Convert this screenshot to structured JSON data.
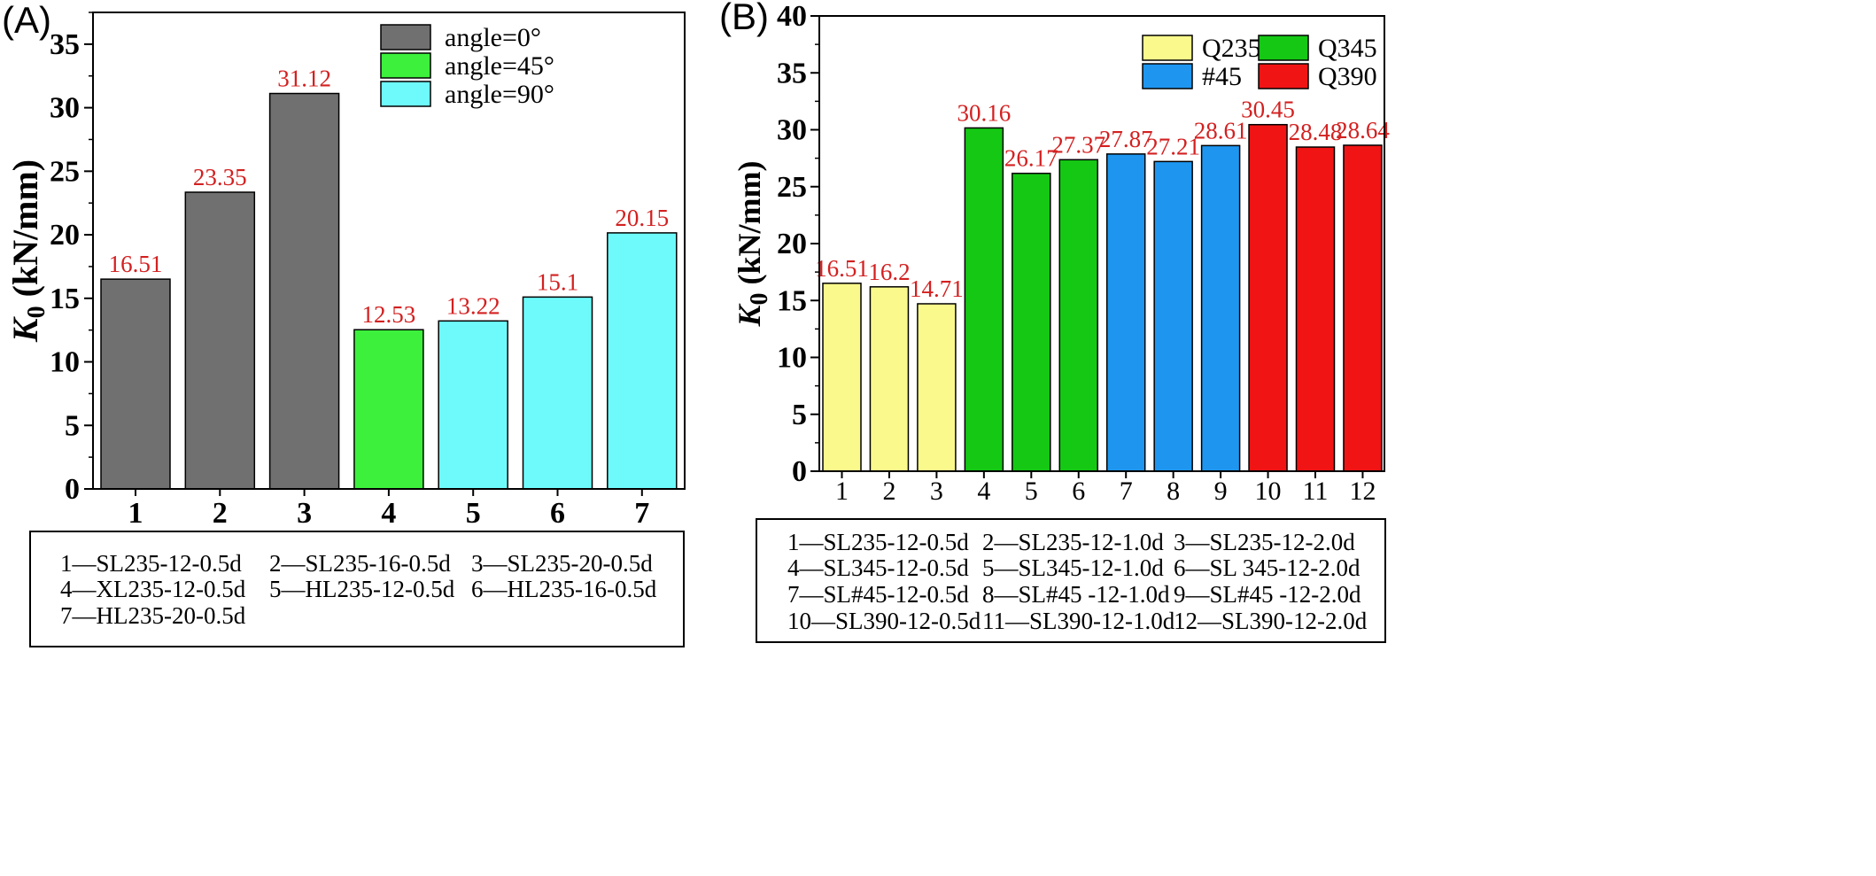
{
  "chart_data": [
    {
      "panel": "(A)",
      "type": "bar",
      "ylabel_main": "K",
      "ylabel_sub": "0",
      "ylabel_rest": " (kN/mm)",
      "ylim": [
        0,
        37.5
      ],
      "yticks": [
        0,
        5,
        10,
        15,
        20,
        25,
        30,
        35
      ],
      "categories": [
        "1",
        "2",
        "3",
        "4",
        "5",
        "6",
        "7"
      ],
      "values": [
        16.51,
        23.35,
        31.12,
        12.53,
        13.22,
        15.1,
        20.15
      ],
      "value_labels": [
        "16.51",
        "23.35",
        "31.12",
        "12.53",
        "13.22",
        "15.1",
        "20.15"
      ],
      "bar_groups": [
        0,
        0,
        0,
        1,
        2,
        2,
        2
      ],
      "legend_position": "top-right",
      "legend": [
        {
          "label": "angle=0°",
          "color": "#707070"
        },
        {
          "label": "angle=45°",
          "color": "#3cf03c"
        },
        {
          "label": "angle=90°",
          "color": "#6efafa"
        }
      ],
      "label_color": "#d32020",
      "notes": [
        [
          "1—SL235-12-0.5d",
          "2—SL235-16-0.5d",
          "3—SL235-20-0.5d"
        ],
        [
          "4—XL235-12-0.5d",
          "5—HL235-12-0.5d",
          "6—HL235-16-0.5d"
        ],
        [
          "7—HL235-20-0.5d"
        ]
      ]
    },
    {
      "panel": "(B)",
      "type": "bar",
      "ylabel_main": "K",
      "ylabel_sub": "0",
      "ylabel_rest": " (kN/mm)",
      "ylim": [
        0,
        40
      ],
      "yticks": [
        0,
        5,
        10,
        15,
        20,
        25,
        30,
        35,
        40
      ],
      "categories": [
        "1",
        "2",
        "3",
        "4",
        "5",
        "6",
        "7",
        "8",
        "9",
        "10",
        "11",
        "12"
      ],
      "values": [
        16.51,
        16.2,
        14.71,
        30.16,
        26.17,
        27.37,
        27.87,
        27.21,
        28.61,
        30.45,
        28.48,
        28.64
      ],
      "value_labels": [
        "16.51",
        "16.2",
        "14.71",
        "30.16",
        "26.17",
        "27.37",
        "27.87",
        "27.21",
        "28.61",
        "30.45",
        "28.48",
        "28.64"
      ],
      "bar_groups": [
        0,
        0,
        0,
        1,
        1,
        1,
        2,
        2,
        2,
        3,
        3,
        3
      ],
      "legend_position": "top-right",
      "legend": [
        {
          "label": "Q235",
          "color": "#fafa8c"
        },
        {
          "label": "Q345",
          "color": "#14c814"
        },
        {
          "label": "#45",
          "color": "#1e96f0"
        },
        {
          "label": "Q390",
          "color": "#f01414"
        }
      ],
      "label_color": "#d32020",
      "notes": [
        [
          "1—SL235-12-0.5d",
          "2—SL235-12-1.0d",
          "3—SL235-12-2.0d"
        ],
        [
          "4—SL345-12-0.5d",
          "5—SL345-12-1.0d",
          "6—SL 345-12-2.0d"
        ],
        [
          "7—SL#45-12-0.5d",
          "8—SL#45 -12-1.0d",
          "9—SL#45 -12-2.0d"
        ],
        [
          "10—SL390-12-0.5d",
          "11—SL390-12-1.0d",
          "12—SL390-12-2.0d"
        ]
      ]
    }
  ]
}
